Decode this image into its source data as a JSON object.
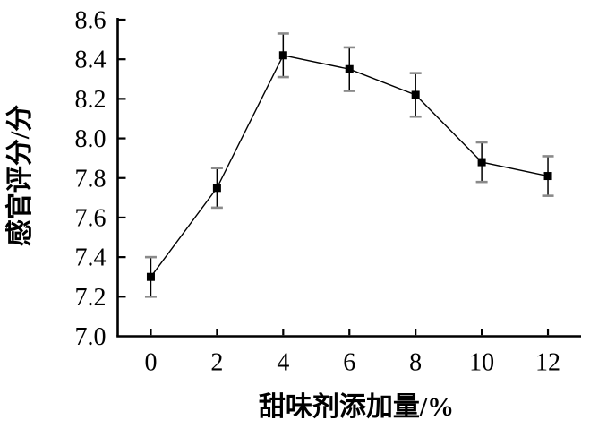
{
  "chart_data": {
    "type": "line",
    "title": "",
    "xlabel": "甜味剂添加量/%",
    "ylabel": "感官评分/分",
    "x": [
      0,
      2,
      4,
      6,
      8,
      10,
      12
    ],
    "x_tick_labels": [
      "0",
      "2",
      "4",
      "6",
      "8",
      "10",
      "12"
    ],
    "y_ticks": [
      7.0,
      7.2,
      7.4,
      7.6,
      7.8,
      8.0,
      8.2,
      8.4,
      8.6
    ],
    "y_tick_labels": [
      "7.0",
      "7.2",
      "7.4",
      "7.6",
      "7.8",
      "8.0",
      "8.2",
      "8.4",
      "8.6"
    ],
    "series": [
      {
        "marker": "filled-square",
        "values": [
          7.3,
          7.75,
          8.42,
          8.35,
          8.22,
          7.88,
          7.81
        ],
        "error_bars": [
          0.1,
          0.1,
          0.11,
          0.11,
          0.11,
          0.1,
          0.1
        ]
      }
    ],
    "xlim": [
      -1,
      13
    ],
    "ylim": [
      7.0,
      8.6
    ],
    "grid": false,
    "legend": "none",
    "colors": {
      "line": "#000000",
      "marker": "#000000",
      "axis": "#000000",
      "error_cap": "#8a8a8a",
      "background": "#ffffff"
    }
  }
}
